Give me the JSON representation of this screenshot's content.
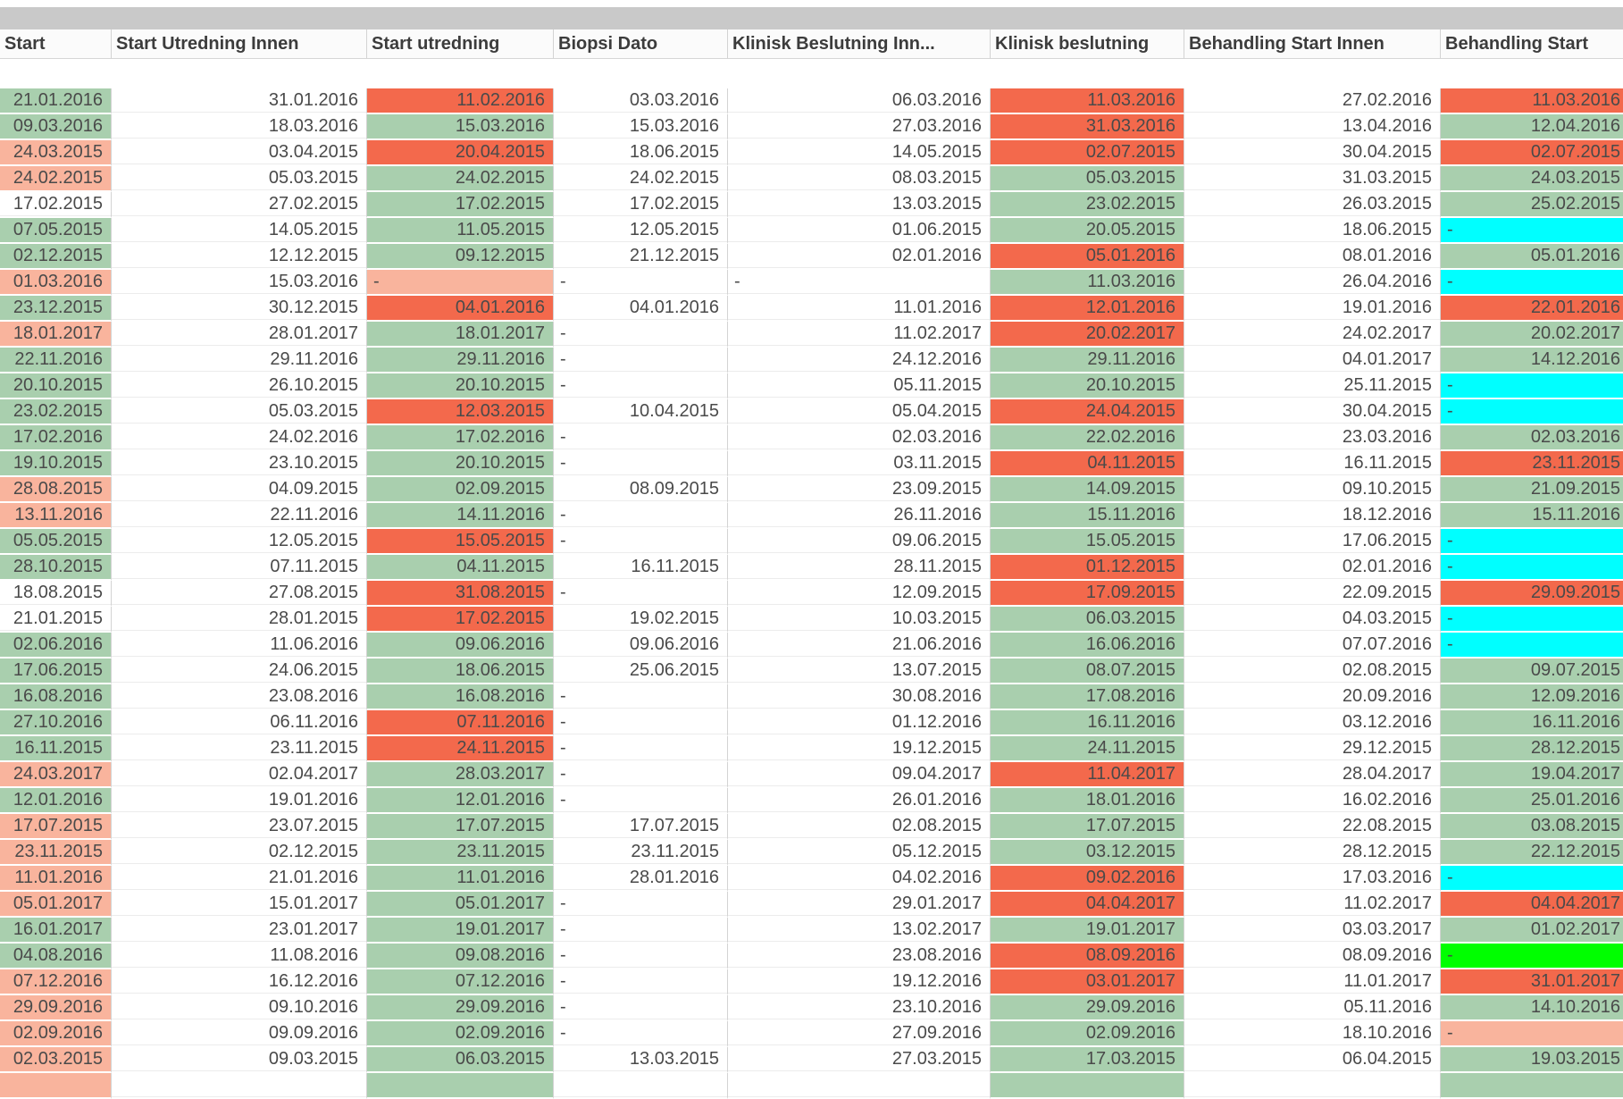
{
  "top_band_color": "#c9c9c9",
  "status_colors": {
    "g": "#a9cfae",
    "r": "#f3694c",
    "s": "#f9b49d",
    "c": "#00ffff",
    "l": "#00ff00",
    "w": "#ffffff"
  },
  "table": {
    "header_labels": [
      "Start",
      "Start Utredning Innen",
      "Start utredning",
      "Biopsi Dato",
      "Klinisk Beslutning Inn...",
      "Klinisk beslutning",
      "Behandling Start Innen",
      "Behandling Start"
    ],
    "rows": [
      [
        [
          "21.01.2016",
          "g"
        ],
        [
          "31.01.2016",
          "w"
        ],
        [
          "11.02.2016",
          "r"
        ],
        [
          "03.03.2016",
          "w"
        ],
        [
          "06.03.2016",
          "w"
        ],
        [
          "11.03.2016",
          "r"
        ],
        [
          "27.02.2016",
          "w"
        ],
        [
          "11.03.2016",
          "r"
        ]
      ],
      [
        [
          "09.03.2016",
          "g"
        ],
        [
          "18.03.2016",
          "w"
        ],
        [
          "15.03.2016",
          "g"
        ],
        [
          "15.03.2016",
          "w"
        ],
        [
          "27.03.2016",
          "w"
        ],
        [
          "31.03.2016",
          "r"
        ],
        [
          "13.04.2016",
          "w"
        ],
        [
          "12.04.2016",
          "g"
        ]
      ],
      [
        [
          "24.03.2015",
          "s"
        ],
        [
          "03.04.2015",
          "w"
        ],
        [
          "20.04.2015",
          "r"
        ],
        [
          "18.06.2015",
          "w"
        ],
        [
          "14.05.2015",
          "w"
        ],
        [
          "02.07.2015",
          "r"
        ],
        [
          "30.04.2015",
          "w"
        ],
        [
          "02.07.2015",
          "r"
        ]
      ],
      [
        [
          "24.02.2015",
          "s"
        ],
        [
          "05.03.2015",
          "w"
        ],
        [
          "24.02.2015",
          "g"
        ],
        [
          "24.02.2015",
          "w"
        ],
        [
          "08.03.2015",
          "w"
        ],
        [
          "05.03.2015",
          "g"
        ],
        [
          "31.03.2015",
          "w"
        ],
        [
          "24.03.2015",
          "g"
        ]
      ],
      [
        [
          "17.02.2015",
          "w"
        ],
        [
          "27.02.2015",
          "w"
        ],
        [
          "17.02.2015",
          "g"
        ],
        [
          "17.02.2015",
          "w"
        ],
        [
          "13.03.2015",
          "w"
        ],
        [
          "23.02.2015",
          "g"
        ],
        [
          "26.03.2015",
          "w"
        ],
        [
          "25.02.2015",
          "g"
        ]
      ],
      [
        [
          "07.05.2015",
          "g"
        ],
        [
          "14.05.2015",
          "w"
        ],
        [
          "11.05.2015",
          "g"
        ],
        [
          "12.05.2015",
          "w"
        ],
        [
          "01.06.2015",
          "w"
        ],
        [
          "20.05.2015",
          "g"
        ],
        [
          "18.06.2015",
          "w"
        ],
        [
          "-",
          "c"
        ]
      ],
      [
        [
          "02.12.2015",
          "g"
        ],
        [
          "12.12.2015",
          "w"
        ],
        [
          "09.12.2015",
          "g"
        ],
        [
          "21.12.2015",
          "w"
        ],
        [
          "02.01.2016",
          "w"
        ],
        [
          "05.01.2016",
          "r"
        ],
        [
          "08.01.2016",
          "w"
        ],
        [
          "05.01.2016",
          "g"
        ]
      ],
      [
        [
          "01.03.2016",
          "s"
        ],
        [
          "15.03.2016",
          "w"
        ],
        [
          "-",
          "s"
        ],
        [
          "-",
          "w"
        ],
        [
          "-",
          "w"
        ],
        [
          "11.03.2016",
          "g"
        ],
        [
          "26.04.2016",
          "w"
        ],
        [
          "-",
          "c"
        ]
      ],
      [
        [
          "23.12.2015",
          "g"
        ],
        [
          "30.12.2015",
          "w"
        ],
        [
          "04.01.2016",
          "r"
        ],
        [
          "04.01.2016",
          "w"
        ],
        [
          "11.01.2016",
          "w"
        ],
        [
          "12.01.2016",
          "r"
        ],
        [
          "19.01.2016",
          "w"
        ],
        [
          "22.01.2016",
          "r"
        ]
      ],
      [
        [
          "18.01.2017",
          "s"
        ],
        [
          "28.01.2017",
          "w"
        ],
        [
          "18.01.2017",
          "g"
        ],
        [
          "-",
          "w"
        ],
        [
          "11.02.2017",
          "w"
        ],
        [
          "20.02.2017",
          "r"
        ],
        [
          "24.02.2017",
          "w"
        ],
        [
          "20.02.2017",
          "g"
        ]
      ],
      [
        [
          "22.11.2016",
          "g"
        ],
        [
          "29.11.2016",
          "w"
        ],
        [
          "29.11.2016",
          "g"
        ],
        [
          "-",
          "w"
        ],
        [
          "24.12.2016",
          "w"
        ],
        [
          "29.11.2016",
          "g"
        ],
        [
          "04.01.2017",
          "w"
        ],
        [
          "14.12.2016",
          "g"
        ]
      ],
      [
        [
          "20.10.2015",
          "g"
        ],
        [
          "26.10.2015",
          "w"
        ],
        [
          "20.10.2015",
          "g"
        ],
        [
          "-",
          "w"
        ],
        [
          "05.11.2015",
          "w"
        ],
        [
          "20.10.2015",
          "g"
        ],
        [
          "25.11.2015",
          "w"
        ],
        [
          "-",
          "c"
        ]
      ],
      [
        [
          "23.02.2015",
          "g"
        ],
        [
          "05.03.2015",
          "w"
        ],
        [
          "12.03.2015",
          "r"
        ],
        [
          "10.04.2015",
          "w"
        ],
        [
          "05.04.2015",
          "w"
        ],
        [
          "24.04.2015",
          "r"
        ],
        [
          "30.04.2015",
          "w"
        ],
        [
          "-",
          "c"
        ]
      ],
      [
        [
          "17.02.2016",
          "g"
        ],
        [
          "24.02.2016",
          "w"
        ],
        [
          "17.02.2016",
          "g"
        ],
        [
          "-",
          "w"
        ],
        [
          "02.03.2016",
          "w"
        ],
        [
          "22.02.2016",
          "g"
        ],
        [
          "23.03.2016",
          "w"
        ],
        [
          "02.03.2016",
          "g"
        ]
      ],
      [
        [
          "19.10.2015",
          "g"
        ],
        [
          "23.10.2015",
          "w"
        ],
        [
          "20.10.2015",
          "g"
        ],
        [
          "-",
          "w"
        ],
        [
          "03.11.2015",
          "w"
        ],
        [
          "04.11.2015",
          "r"
        ],
        [
          "16.11.2015",
          "w"
        ],
        [
          "23.11.2015",
          "r"
        ]
      ],
      [
        [
          "28.08.2015",
          "s"
        ],
        [
          "04.09.2015",
          "w"
        ],
        [
          "02.09.2015",
          "g"
        ],
        [
          "08.09.2015",
          "w"
        ],
        [
          "23.09.2015",
          "w"
        ],
        [
          "14.09.2015",
          "g"
        ],
        [
          "09.10.2015",
          "w"
        ],
        [
          "21.09.2015",
          "g"
        ]
      ],
      [
        [
          "13.11.2016",
          "s"
        ],
        [
          "22.11.2016",
          "w"
        ],
        [
          "14.11.2016",
          "g"
        ],
        [
          "-",
          "w"
        ],
        [
          "26.11.2016",
          "w"
        ],
        [
          "15.11.2016",
          "g"
        ],
        [
          "18.12.2016",
          "w"
        ],
        [
          "15.11.2016",
          "g"
        ]
      ],
      [
        [
          "05.05.2015",
          "g"
        ],
        [
          "12.05.2015",
          "w"
        ],
        [
          "15.05.2015",
          "r"
        ],
        [
          "-",
          "w"
        ],
        [
          "09.06.2015",
          "w"
        ],
        [
          "15.05.2015",
          "g"
        ],
        [
          "17.06.2015",
          "w"
        ],
        [
          "-",
          "c"
        ]
      ],
      [
        [
          "28.10.2015",
          "g"
        ],
        [
          "07.11.2015",
          "w"
        ],
        [
          "04.11.2015",
          "g"
        ],
        [
          "16.11.2015",
          "w"
        ],
        [
          "28.11.2015",
          "w"
        ],
        [
          "01.12.2015",
          "r"
        ],
        [
          "02.01.2016",
          "w"
        ],
        [
          "-",
          "c"
        ]
      ],
      [
        [
          "18.08.2015",
          "w"
        ],
        [
          "27.08.2015",
          "w"
        ],
        [
          "31.08.2015",
          "r"
        ],
        [
          "-",
          "w"
        ],
        [
          "12.09.2015",
          "w"
        ],
        [
          "17.09.2015",
          "r"
        ],
        [
          "22.09.2015",
          "w"
        ],
        [
          "29.09.2015",
          "r"
        ]
      ],
      [
        [
          "21.01.2015",
          "w"
        ],
        [
          "28.01.2015",
          "w"
        ],
        [
          "17.02.2015",
          "r"
        ],
        [
          "19.02.2015",
          "w"
        ],
        [
          "10.03.2015",
          "w"
        ],
        [
          "06.03.2015",
          "g"
        ],
        [
          "04.03.2015",
          "w"
        ],
        [
          "-",
          "c"
        ]
      ],
      [
        [
          "02.06.2016",
          "g"
        ],
        [
          "11.06.2016",
          "w"
        ],
        [
          "09.06.2016",
          "g"
        ],
        [
          "09.06.2016",
          "w"
        ],
        [
          "21.06.2016",
          "w"
        ],
        [
          "16.06.2016",
          "g"
        ],
        [
          "07.07.2016",
          "w"
        ],
        [
          "-",
          "c"
        ]
      ],
      [
        [
          "17.06.2015",
          "g"
        ],
        [
          "24.06.2015",
          "w"
        ],
        [
          "18.06.2015",
          "g"
        ],
        [
          "25.06.2015",
          "w"
        ],
        [
          "13.07.2015",
          "w"
        ],
        [
          "08.07.2015",
          "g"
        ],
        [
          "02.08.2015",
          "w"
        ],
        [
          "09.07.2015",
          "g"
        ]
      ],
      [
        [
          "16.08.2016",
          "g"
        ],
        [
          "23.08.2016",
          "w"
        ],
        [
          "16.08.2016",
          "g"
        ],
        [
          "-",
          "w"
        ],
        [
          "30.08.2016",
          "w"
        ],
        [
          "17.08.2016",
          "g"
        ],
        [
          "20.09.2016",
          "w"
        ],
        [
          "12.09.2016",
          "g"
        ]
      ],
      [
        [
          "27.10.2016",
          "g"
        ],
        [
          "06.11.2016",
          "w"
        ],
        [
          "07.11.2016",
          "r"
        ],
        [
          "-",
          "w"
        ],
        [
          "01.12.2016",
          "w"
        ],
        [
          "16.11.2016",
          "g"
        ],
        [
          "03.12.2016",
          "w"
        ],
        [
          "16.11.2016",
          "g"
        ]
      ],
      [
        [
          "16.11.2015",
          "g"
        ],
        [
          "23.11.2015",
          "w"
        ],
        [
          "24.11.2015",
          "r"
        ],
        [
          "-",
          "w"
        ],
        [
          "19.12.2015",
          "w"
        ],
        [
          "24.11.2015",
          "g"
        ],
        [
          "29.12.2015",
          "w"
        ],
        [
          "28.12.2015",
          "g"
        ]
      ],
      [
        [
          "24.03.2017",
          "s"
        ],
        [
          "02.04.2017",
          "w"
        ],
        [
          "28.03.2017",
          "g"
        ],
        [
          "-",
          "w"
        ],
        [
          "09.04.2017",
          "w"
        ],
        [
          "11.04.2017",
          "r"
        ],
        [
          "28.04.2017",
          "w"
        ],
        [
          "19.04.2017",
          "g"
        ]
      ],
      [
        [
          "12.01.2016",
          "g"
        ],
        [
          "19.01.2016",
          "w"
        ],
        [
          "12.01.2016",
          "g"
        ],
        [
          "-",
          "w"
        ],
        [
          "26.01.2016",
          "w"
        ],
        [
          "18.01.2016",
          "g"
        ],
        [
          "16.02.2016",
          "w"
        ],
        [
          "25.01.2016",
          "g"
        ]
      ],
      [
        [
          "17.07.2015",
          "s"
        ],
        [
          "23.07.2015",
          "w"
        ],
        [
          "17.07.2015",
          "g"
        ],
        [
          "17.07.2015",
          "w"
        ],
        [
          "02.08.2015",
          "w"
        ],
        [
          "17.07.2015",
          "g"
        ],
        [
          "22.08.2015",
          "w"
        ],
        [
          "03.08.2015",
          "g"
        ]
      ],
      [
        [
          "23.11.2015",
          "s"
        ],
        [
          "02.12.2015",
          "w"
        ],
        [
          "23.11.2015",
          "g"
        ],
        [
          "23.11.2015",
          "w"
        ],
        [
          "05.12.2015",
          "w"
        ],
        [
          "03.12.2015",
          "g"
        ],
        [
          "28.12.2015",
          "w"
        ],
        [
          "22.12.2015",
          "g"
        ]
      ],
      [
        [
          "11.01.2016",
          "s"
        ],
        [
          "21.01.2016",
          "w"
        ],
        [
          "11.01.2016",
          "g"
        ],
        [
          "28.01.2016",
          "w"
        ],
        [
          "04.02.2016",
          "w"
        ],
        [
          "09.02.2016",
          "r"
        ],
        [
          "17.03.2016",
          "w"
        ],
        [
          "-",
          "c"
        ]
      ],
      [
        [
          "05.01.2017",
          "s"
        ],
        [
          "15.01.2017",
          "w"
        ],
        [
          "05.01.2017",
          "g"
        ],
        [
          "-",
          "w"
        ],
        [
          "29.01.2017",
          "w"
        ],
        [
          "04.04.2017",
          "r"
        ],
        [
          "11.02.2017",
          "w"
        ],
        [
          "04.04.2017",
          "r"
        ]
      ],
      [
        [
          "16.01.2017",
          "g"
        ],
        [
          "23.01.2017",
          "w"
        ],
        [
          "19.01.2017",
          "g"
        ],
        [
          "-",
          "w"
        ],
        [
          "13.02.2017",
          "w"
        ],
        [
          "19.01.2017",
          "g"
        ],
        [
          "03.03.2017",
          "w"
        ],
        [
          "01.02.2017",
          "g"
        ]
      ],
      [
        [
          "04.08.2016",
          "g"
        ],
        [
          "11.08.2016",
          "w"
        ],
        [
          "09.08.2016",
          "g"
        ],
        [
          "-",
          "w"
        ],
        [
          "23.08.2016",
          "w"
        ],
        [
          "08.09.2016",
          "r"
        ],
        [
          "08.09.2016",
          "w"
        ],
        [
          "-",
          "l"
        ]
      ],
      [
        [
          "07.12.2016",
          "s"
        ],
        [
          "16.12.2016",
          "w"
        ],
        [
          "07.12.2016",
          "g"
        ],
        [
          "-",
          "w"
        ],
        [
          "19.12.2016",
          "w"
        ],
        [
          "03.01.2017",
          "r"
        ],
        [
          "11.01.2017",
          "w"
        ],
        [
          "31.01.2017",
          "r"
        ]
      ],
      [
        [
          "29.09.2016",
          "s"
        ],
        [
          "09.10.2016",
          "w"
        ],
        [
          "29.09.2016",
          "g"
        ],
        [
          "-",
          "w"
        ],
        [
          "23.10.2016",
          "w"
        ],
        [
          "29.09.2016",
          "g"
        ],
        [
          "05.11.2016",
          "w"
        ],
        [
          "14.10.2016",
          "g"
        ]
      ],
      [
        [
          "02.09.2016",
          "s"
        ],
        [
          "09.09.2016",
          "w"
        ],
        [
          "02.09.2016",
          "g"
        ],
        [
          "-",
          "w"
        ],
        [
          "27.09.2016",
          "w"
        ],
        [
          "02.09.2016",
          "g"
        ],
        [
          "18.10.2016",
          "w"
        ],
        [
          "-",
          "s"
        ]
      ],
      [
        [
          "02.03.2015",
          "s"
        ],
        [
          "09.03.2015",
          "w"
        ],
        [
          "06.03.2015",
          "g"
        ],
        [
          "13.03.2015",
          "w"
        ],
        [
          "27.03.2015",
          "w"
        ],
        [
          "17.03.2015",
          "g"
        ],
        [
          "06.04.2015",
          "w"
        ],
        [
          "19.03.2015",
          "g"
        ]
      ],
      [
        [
          "",
          "s"
        ],
        [
          "",
          "w"
        ],
        [
          "",
          "g"
        ],
        [
          "",
          "w"
        ],
        [
          "",
          "w"
        ],
        [
          "",
          "g"
        ],
        [
          "",
          "w"
        ],
        [
          "",
          "g"
        ]
      ]
    ]
  }
}
